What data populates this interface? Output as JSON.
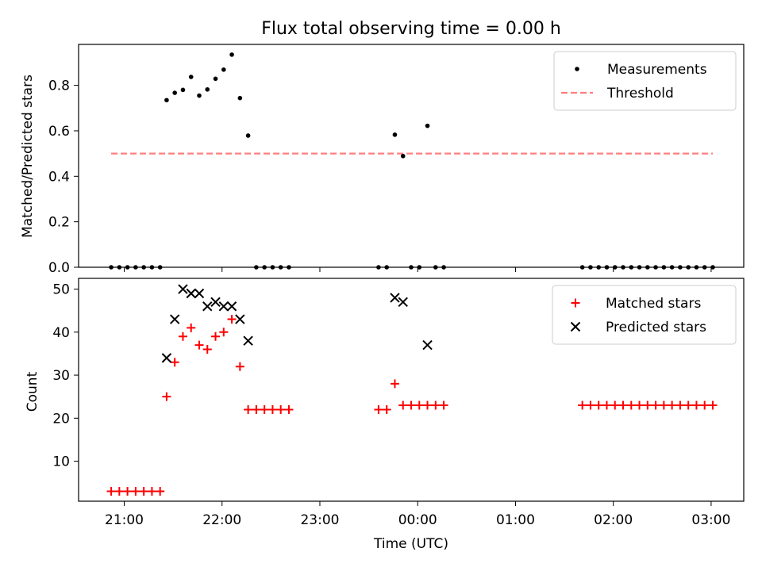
{
  "figure": {
    "title": "Flux total observing time = 0.00 h"
  },
  "chart_data": [
    {
      "type": "scatter",
      "ylabel": "Matched/Predicted stars",
      "ylim": [
        0,
        0.98
      ],
      "yticks": [
        0.0,
        0.2,
        0.4,
        0.6,
        0.8
      ],
      "ytick_labels": [
        "0.0",
        "0.2",
        "0.4",
        "0.6",
        "0.8"
      ],
      "legend_position": "top-right",
      "series": [
        {
          "name": "Measurements",
          "marker": "dot",
          "color": "#000000",
          "points": [
            [
              "20:52",
              0.0
            ],
            [
              "20:57",
              0.0
            ],
            [
              "21:02",
              0.0
            ],
            [
              "21:07",
              0.0
            ],
            [
              "21:12",
              0.0
            ],
            [
              "21:17",
              0.0
            ],
            [
              "21:22",
              0.0
            ],
            [
              "21:26",
              0.735
            ],
            [
              "21:31",
              0.767
            ],
            [
              "21:36",
              0.78
            ],
            [
              "21:41",
              0.837
            ],
            [
              "21:46",
              0.755
            ],
            [
              "21:51",
              0.782
            ],
            [
              "21:56",
              0.829
            ],
            [
              "22:01",
              0.869
            ],
            [
              "22:06",
              0.935
            ],
            [
              "22:11",
              0.744
            ],
            [
              "22:16",
              0.579
            ],
            [
              "22:21",
              0.0
            ],
            [
              "22:26",
              0.0
            ],
            [
              "22:31",
              0.0
            ],
            [
              "22:36",
              0.0
            ],
            [
              "22:41",
              0.0
            ],
            [
              "23:36",
              0.0
            ],
            [
              "23:41",
              0.0
            ],
            [
              "23:46",
              0.583
            ],
            [
              "23:51",
              0.489
            ],
            [
              "23:56",
              0.0
            ],
            [
              "00:01",
              0.0
            ],
            [
              "00:06",
              0.622
            ],
            [
              "00:11",
              0.0
            ],
            [
              "00:16",
              0.0
            ],
            [
              "01:41",
              0.0
            ],
            [
              "01:46",
              0.0
            ],
            [
              "01:51",
              0.0
            ],
            [
              "01:56",
              0.0
            ],
            [
              "02:01",
              0.0
            ],
            [
              "02:06",
              0.0
            ],
            [
              "02:11",
              0.0
            ],
            [
              "02:16",
              0.0
            ],
            [
              "02:21",
              0.0
            ],
            [
              "02:26",
              0.0
            ],
            [
              "02:31",
              0.0
            ],
            [
              "02:36",
              0.0
            ],
            [
              "02:41",
              0.0
            ],
            [
              "02:46",
              0.0
            ],
            [
              "02:51",
              0.0
            ],
            [
              "02:56",
              0.0
            ],
            [
              "03:01",
              0.0
            ]
          ]
        },
        {
          "name": "Threshold",
          "marker": "dashed-line",
          "color": "#ff7f7f",
          "points": [
            [
              "20:52",
              0.5
            ],
            [
              "03:01",
              0.5
            ]
          ]
        }
      ]
    },
    {
      "type": "scatter",
      "xlabel": "Time (UTC)",
      "ylabel": "Count",
      "ylim": [
        0.7,
        52.5
      ],
      "yticks": [
        10,
        20,
        30,
        40,
        50
      ],
      "ytick_labels": [
        "10",
        "20",
        "30",
        "40",
        "50"
      ],
      "xrange": [
        "20:32",
        "03:20"
      ],
      "xticks": [
        "21:00",
        "22:00",
        "23:00",
        "00:00",
        "01:00",
        "02:00",
        "03:00"
      ],
      "legend_position": "top-right",
      "series": [
        {
          "name": "Matched stars",
          "marker": "plus",
          "color": "#ff0000",
          "points": [
            [
              "20:52",
              3
            ],
            [
              "20:57",
              3
            ],
            [
              "21:02",
              3
            ],
            [
              "21:07",
              3
            ],
            [
              "21:12",
              3
            ],
            [
              "21:17",
              3
            ],
            [
              "21:22",
              3
            ],
            [
              "21:26",
              25
            ],
            [
              "21:31",
              33
            ],
            [
              "21:36",
              39
            ],
            [
              "21:41",
              41
            ],
            [
              "21:46",
              37
            ],
            [
              "21:51",
              36
            ],
            [
              "21:56",
              39
            ],
            [
              "22:01",
              40
            ],
            [
              "22:06",
              43
            ],
            [
              "22:11",
              32
            ],
            [
              "22:16",
              22
            ],
            [
              "22:21",
              22
            ],
            [
              "22:26",
              22
            ],
            [
              "22:31",
              22
            ],
            [
              "22:36",
              22
            ],
            [
              "22:41",
              22
            ],
            [
              "23:36",
              22
            ],
            [
              "23:41",
              22
            ],
            [
              "23:46",
              28
            ],
            [
              "23:51",
              23
            ],
            [
              "23:56",
              23
            ],
            [
              "00:01",
              23
            ],
            [
              "00:06",
              23
            ],
            [
              "00:11",
              23
            ],
            [
              "00:16",
              23
            ],
            [
              "01:41",
              23
            ],
            [
              "01:46",
              23
            ],
            [
              "01:51",
              23
            ],
            [
              "01:56",
              23
            ],
            [
              "02:01",
              23
            ],
            [
              "02:06",
              23
            ],
            [
              "02:11",
              23
            ],
            [
              "02:16",
              23
            ],
            [
              "02:21",
              23
            ],
            [
              "02:26",
              23
            ],
            [
              "02:31",
              23
            ],
            [
              "02:36",
              23
            ],
            [
              "02:41",
              23
            ],
            [
              "02:46",
              23
            ],
            [
              "02:51",
              23
            ],
            [
              "02:56",
              23
            ],
            [
              "03:01",
              23
            ]
          ]
        },
        {
          "name": "Predicted stars",
          "marker": "x",
          "color": "#000000",
          "points": [
            [
              "21:26",
              34
            ],
            [
              "21:31",
              43
            ],
            [
              "21:36",
              50
            ],
            [
              "21:41",
              49
            ],
            [
              "21:46",
              49
            ],
            [
              "21:51",
              46
            ],
            [
              "21:56",
              47
            ],
            [
              "22:01",
              46
            ],
            [
              "22:06",
              46
            ],
            [
              "22:11",
              43
            ],
            [
              "22:16",
              38
            ],
            [
              "23:46",
              48
            ],
            [
              "23:51",
              47
            ],
            [
              "00:06",
              37
            ]
          ]
        }
      ]
    }
  ]
}
